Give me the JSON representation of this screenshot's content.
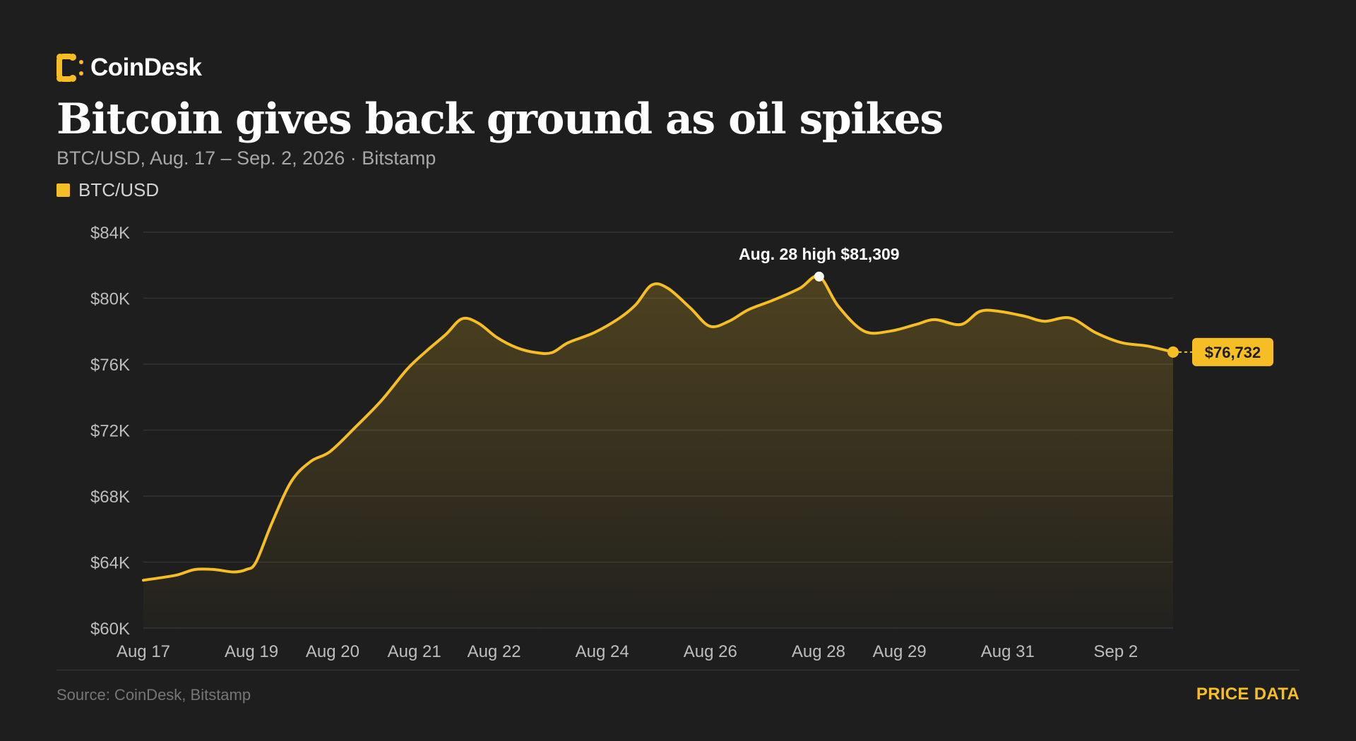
{
  "brand": {
    "name": "CoinDesk",
    "accent_color": "#f5be24",
    "logo_icon": "coindesk-logo-icon"
  },
  "header": {
    "title": "Bitcoin gives back ground as oil spikes",
    "subtitle": "BTC/USD, Aug. 17 – Sep. 2, 2026 · Bitstamp"
  },
  "legend": {
    "items": [
      {
        "label": "BTC/USD",
        "color": "#f5be24"
      }
    ]
  },
  "footer": {
    "source": "Source: CoinDesk, Bitstamp",
    "link_label": "PRICE DATA"
  },
  "chart_data": {
    "type": "area",
    "grid": true,
    "legend_position": "top-left",
    "xlim": [
      17,
      33.0
    ],
    "ylim": [
      60000,
      84000
    ],
    "x_ticks": [
      {
        "x": 17.0,
        "label": "Aug 17"
      },
      {
        "x": 18.68,
        "label": "Aug 19"
      },
      {
        "x": 19.94,
        "label": "Aug 20"
      },
      {
        "x": 21.21,
        "label": "Aug 21"
      },
      {
        "x": 22.45,
        "label": "Aug 22"
      },
      {
        "x": 24.13,
        "label": "Aug 24"
      },
      {
        "x": 25.81,
        "label": "Aug 26"
      },
      {
        "x": 27.49,
        "label": "Aug 28"
      },
      {
        "x": 28.75,
        "label": "Aug 29"
      },
      {
        "x": 30.43,
        "label": "Aug 31"
      },
      {
        "x": 32.11,
        "label": "Sep 2"
      }
    ],
    "y_ticks": [
      {
        "y": 60000,
        "label": "$60K"
      },
      {
        "y": 64000,
        "label": "$64K"
      },
      {
        "y": 68000,
        "label": "$68K"
      },
      {
        "y": 72000,
        "label": "$72K"
      },
      {
        "y": 76000,
        "label": "$76K"
      },
      {
        "y": 80000,
        "label": "$80K"
      },
      {
        "y": 84000,
        "label": "$84K"
      }
    ],
    "series": [
      {
        "color": "#f5be24",
        "points": [
          [
            17.0,
            62900
          ],
          [
            17.5,
            63200
          ],
          [
            17.8,
            63550
          ],
          [
            18.1,
            63550
          ],
          [
            18.4,
            63400
          ],
          [
            18.6,
            63550
          ],
          [
            18.75,
            64000
          ],
          [
            19.0,
            66400
          ],
          [
            19.3,
            68900
          ],
          [
            19.6,
            70100
          ],
          [
            19.9,
            70700
          ],
          [
            20.3,
            72200
          ],
          [
            20.7,
            73800
          ],
          [
            21.1,
            75700
          ],
          [
            21.4,
            76800
          ],
          [
            21.7,
            77800
          ],
          [
            21.95,
            78750
          ],
          [
            22.2,
            78500
          ],
          [
            22.5,
            77600
          ],
          [
            22.8,
            77000
          ],
          [
            23.1,
            76700
          ],
          [
            23.35,
            76700
          ],
          [
            23.6,
            77300
          ],
          [
            24.0,
            77900
          ],
          [
            24.4,
            78800
          ],
          [
            24.65,
            79600
          ],
          [
            24.9,
            80800
          ],
          [
            25.15,
            80600
          ],
          [
            25.5,
            79400
          ],
          [
            25.8,
            78300
          ],
          [
            26.1,
            78600
          ],
          [
            26.4,
            79300
          ],
          [
            26.8,
            79900
          ],
          [
            27.2,
            80600
          ],
          [
            27.5,
            81309
          ],
          [
            27.8,
            79500
          ],
          [
            28.2,
            78000
          ],
          [
            28.6,
            78000
          ],
          [
            29.0,
            78400
          ],
          [
            29.3,
            78700
          ],
          [
            29.7,
            78400
          ],
          [
            30.0,
            79200
          ],
          [
            30.3,
            79200
          ],
          [
            30.7,
            78900
          ],
          [
            31.0,
            78600
          ],
          [
            31.4,
            78800
          ],
          [
            31.8,
            77900
          ],
          [
            32.2,
            77300
          ],
          [
            32.6,
            77100
          ],
          [
            33.0,
            76732
          ]
        ]
      }
    ],
    "annotations": [
      {
        "x": 27.5,
        "y": 81309,
        "text": "Aug. 28 high $81,309"
      }
    ],
    "last_value": {
      "x": 33.0,
      "y": 76732,
      "label": "$76,732"
    }
  }
}
